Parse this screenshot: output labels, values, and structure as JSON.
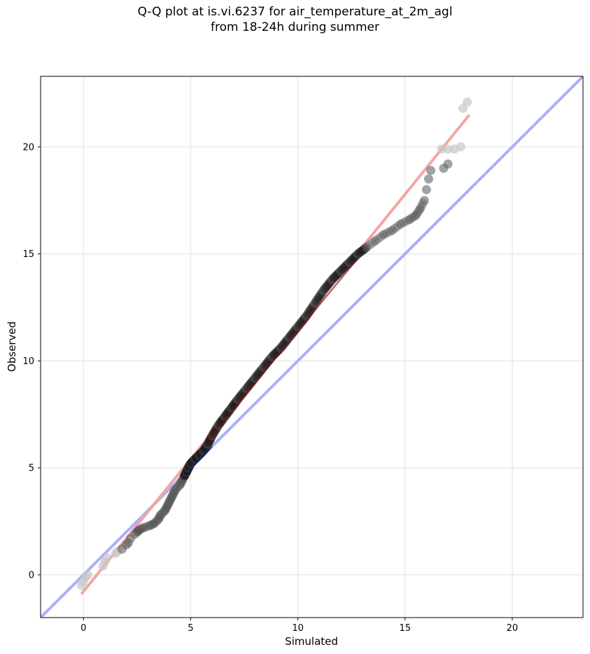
{
  "chart_data": {
    "type": "scatter",
    "title_lines": [
      "Q-Q plot at is.vi.6237 for air_temperature_at_2m_agl",
      "from 18-24h during summer"
    ],
    "xlabel": "Simulated",
    "ylabel": "Observed",
    "xlim": [
      -2.0,
      23.3
    ],
    "ylim": [
      -2.0,
      23.3
    ],
    "xticks": [
      0,
      5,
      10,
      15,
      20
    ],
    "yticks": [
      0,
      5,
      10,
      15,
      20
    ],
    "grid": true,
    "colors": {
      "points": "#555555",
      "points_dense": "#1a1a1a",
      "points_sparse": "#c8c8c8",
      "identity_line": "#aab0f5",
      "fit_line": "#f4a5a5",
      "dark_red": "#8b0000",
      "dark_blue": "#1a237e"
    },
    "identity_line": {
      "label": "",
      "x": [
        -2.0,
        23.3
      ],
      "y": [
        -2.0,
        23.3
      ]
    },
    "fit_line": {
      "label": "",
      "x": [
        -0.1,
        18.0
      ],
      "y": [
        -0.9,
        21.5
      ]
    },
    "quantile_points": [
      [
        -0.1,
        -0.5
      ],
      [
        0.0,
        -0.3
      ],
      [
        0.1,
        -0.1
      ],
      [
        0.2,
        0.0
      ],
      [
        0.9,
        0.4
      ],
      [
        1.0,
        0.6
      ],
      [
        1.1,
        0.8
      ],
      [
        1.5,
        1.0
      ],
      [
        1.6,
        1.1
      ],
      [
        1.8,
        1.2
      ],
      [
        2.0,
        1.4
      ],
      [
        2.1,
        1.5
      ],
      [
        2.2,
        1.7
      ],
      [
        2.4,
        1.9
      ],
      [
        2.5,
        2.0
      ],
      [
        2.6,
        2.1
      ],
      [
        2.8,
        2.2
      ],
      [
        3.1,
        2.3
      ],
      [
        3.3,
        2.4
      ],
      [
        3.5,
        2.6
      ],
      [
        3.6,
        2.8
      ],
      [
        3.8,
        3.0
      ],
      [
        3.9,
        3.2
      ],
      [
        4.0,
        3.4
      ],
      [
        4.1,
        3.6
      ],
      [
        4.2,
        3.8
      ],
      [
        4.3,
        4.0
      ],
      [
        4.5,
        4.2
      ],
      [
        4.6,
        4.4
      ],
      [
        4.7,
        4.6
      ],
      [
        4.8,
        4.8
      ],
      [
        4.9,
        5.0
      ],
      [
        5.0,
        5.2
      ],
      [
        5.2,
        5.4
      ],
      [
        5.4,
        5.6
      ],
      [
        5.6,
        5.8
      ],
      [
        5.8,
        6.1
      ],
      [
        6.0,
        6.5
      ],
      [
        6.3,
        7.0
      ],
      [
        6.6,
        7.4
      ],
      [
        6.9,
        7.8
      ],
      [
        7.2,
        8.2
      ],
      [
        7.6,
        8.7
      ],
      [
        8.0,
        9.2
      ],
      [
        8.4,
        9.7
      ],
      [
        8.8,
        10.2
      ],
      [
        9.2,
        10.6
      ],
      [
        9.6,
        11.1
      ],
      [
        10.0,
        11.6
      ],
      [
        10.4,
        12.1
      ],
      [
        10.8,
        12.7
      ],
      [
        11.2,
        13.3
      ],
      [
        11.6,
        13.8
      ],
      [
        12.0,
        14.2
      ],
      [
        12.4,
        14.6
      ],
      [
        12.8,
        15.0
      ],
      [
        13.2,
        15.3
      ],
      [
        13.6,
        15.6
      ],
      [
        14.0,
        15.9
      ],
      [
        14.4,
        16.1
      ],
      [
        14.8,
        16.4
      ],
      [
        15.2,
        16.6
      ],
      [
        15.5,
        16.8
      ],
      [
        15.7,
        17.1
      ],
      [
        15.9,
        17.5
      ],
      [
        16.0,
        18.0
      ],
      [
        16.1,
        18.5
      ],
      [
        16.2,
        18.9
      ],
      [
        16.8,
        19.0
      ],
      [
        17.0,
        19.2
      ],
      [
        16.7,
        19.9
      ],
      [
        17.0,
        19.9
      ],
      [
        17.3,
        19.9
      ],
      [
        17.6,
        20.0
      ],
      [
        17.7,
        21.8
      ],
      [
        17.9,
        22.1
      ]
    ]
  }
}
